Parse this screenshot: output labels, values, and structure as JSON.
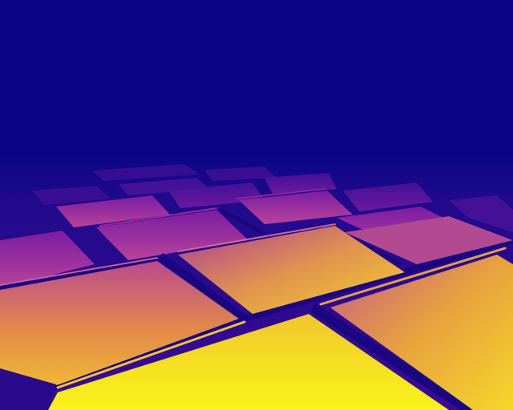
{
  "image": {
    "kind": "thermal-photo",
    "palette": [
      "#0b0685",
      "#3a0a8f",
      "#7a1ca0",
      "#b8439a",
      "#e37a5c",
      "#f5b23a",
      "#f6f21f"
    ],
    "subject": "tiled-surface"
  }
}
